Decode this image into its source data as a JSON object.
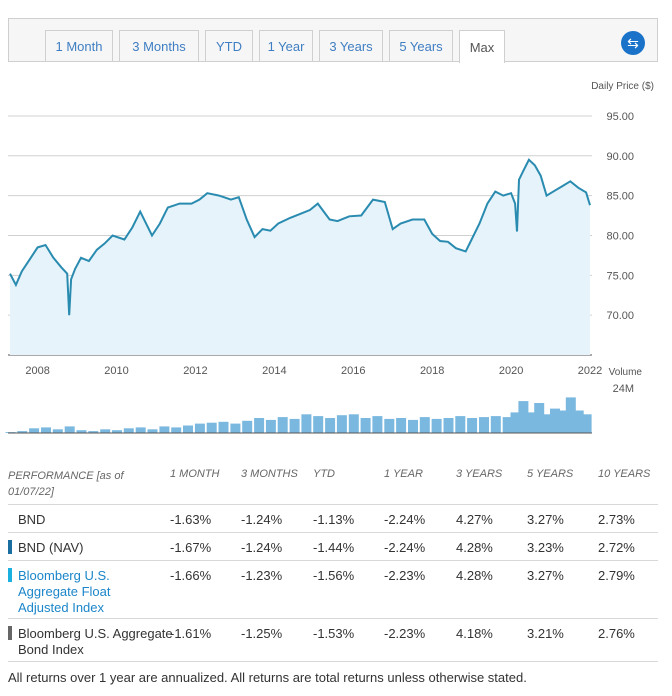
{
  "tabs": [
    {
      "label": "1 Month",
      "active": false
    },
    {
      "label": "3 Months",
      "active": false
    },
    {
      "label": "YTD",
      "active": false
    },
    {
      "label": "1 Year",
      "active": false
    },
    {
      "label": "3 Years",
      "active": false
    },
    {
      "label": "5 Years",
      "active": false
    },
    {
      "label": "Max",
      "active": true
    }
  ],
  "swap_icon": "swap-arrows-icon",
  "colors": {
    "line": "#2a8bb0",
    "fill": "#e6f3fa",
    "volume": "#7ab8df",
    "accent": "#1a73c8",
    "nav_marker": "#1a6ea0",
    "float_marker": "#1ab0e0",
    "bond_marker": "#666666",
    "float_text": "#1b86c9"
  },
  "chart_data": [
    {
      "type": "line",
      "ylabel": "Daily Price ($)",
      "ylim": [
        65,
        97
      ],
      "yticks": [
        "95.00",
        "90.00",
        "85.00",
        "80.00",
        "75.00",
        "70.00"
      ],
      "ytick_values": [
        95,
        90,
        85,
        80,
        75,
        70
      ],
      "xlim": [
        2007.25,
        2022.05
      ],
      "xticks": [
        "2008",
        "2010",
        "2012",
        "2014",
        "2016",
        "2018",
        "2020",
        "2022"
      ],
      "xtick_values": [
        2008,
        2010,
        2012,
        2014,
        2016,
        2018,
        2020,
        2022
      ],
      "grid": true,
      "x": [
        2007.3,
        2007.45,
        2007.6,
        2007.8,
        2008.0,
        2008.2,
        2008.4,
        2008.6,
        2008.75,
        2008.8,
        2008.85,
        2008.95,
        2009.1,
        2009.3,
        2009.5,
        2009.7,
        2009.9,
        2010.2,
        2010.4,
        2010.6,
        2010.9,
        2011.1,
        2011.3,
        2011.6,
        2011.9,
        2012.1,
        2012.3,
        2012.6,
        2012.9,
        2013.1,
        2013.3,
        2013.5,
        2013.7,
        2013.9,
        2014.1,
        2014.4,
        2014.7,
        2014.9,
        2015.1,
        2015.4,
        2015.6,
        2015.9,
        2016.2,
        2016.5,
        2016.8,
        2017.0,
        2017.2,
        2017.5,
        2017.8,
        2018.0,
        2018.2,
        2018.4,
        2018.6,
        2018.85,
        2019.0,
        2019.2,
        2019.4,
        2019.6,
        2019.8,
        2020.0,
        2020.1,
        2020.15,
        2020.2,
        2020.3,
        2020.45,
        2020.6,
        2020.75,
        2020.9,
        2021.1,
        2021.3,
        2021.5,
        2021.7,
        2021.9,
        2022.0
      ],
      "values": [
        75.2,
        73.8,
        75.5,
        77.0,
        78.5,
        78.8,
        77.2,
        76.0,
        75.2,
        70.0,
        74.5,
        75.8,
        77.2,
        76.8,
        78.2,
        79.0,
        80.0,
        79.5,
        81.0,
        83.0,
        80.0,
        81.5,
        83.5,
        84.0,
        84.0,
        84.5,
        85.3,
        85.0,
        84.5,
        84.8,
        82.0,
        79.8,
        80.8,
        80.6,
        81.5,
        82.2,
        82.8,
        83.2,
        84.0,
        82.0,
        81.8,
        82.4,
        82.5,
        84.5,
        84.2,
        80.8,
        81.5,
        82.0,
        82.0,
        80.2,
        79.3,
        79.2,
        78.4,
        78.0,
        79.5,
        81.5,
        84.0,
        85.5,
        85.0,
        85.3,
        84.0,
        80.5,
        87.0,
        88.0,
        89.5,
        88.8,
        87.5,
        85.0,
        85.6,
        86.2,
        86.8,
        86.0,
        85.4,
        83.8
      ]
    },
    {
      "type": "bar",
      "ylabel": "Volume",
      "yticks": [
        "24M"
      ],
      "ytick_values": [
        24
      ],
      "ylim": [
        0,
        24
      ],
      "xlim": [
        2007.25,
        2022.05
      ],
      "x": [
        2007.3,
        2007.6,
        2007.9,
        2008.2,
        2008.5,
        2008.8,
        2009.1,
        2009.4,
        2009.7,
        2010.0,
        2010.3,
        2010.6,
        2010.9,
        2011.2,
        2011.5,
        2011.8,
        2012.1,
        2012.4,
        2012.7,
        2013.0,
        2013.3,
        2013.6,
        2013.9,
        2014.2,
        2014.5,
        2014.8,
        2015.1,
        2015.4,
        2015.7,
        2016.0,
        2016.3,
        2016.6,
        2016.9,
        2017.2,
        2017.5,
        2017.8,
        2018.1,
        2018.4,
        2018.7,
        2019.0,
        2019.3,
        2019.6,
        2019.9,
        2020.1,
        2020.3,
        2020.5,
        2020.7,
        2020.9,
        2021.1,
        2021.3,
        2021.5,
        2021.7,
        2021.9
      ],
      "values": [
        0.5,
        1.0,
        2.5,
        3.0,
        2.0,
        3.5,
        1.5,
        1.0,
        2.0,
        1.5,
        2.5,
        3.0,
        2.0,
        3.5,
        3.0,
        4.0,
        5.0,
        5.5,
        6.0,
        5.0,
        6.5,
        8.0,
        7.0,
        8.5,
        7.5,
        10.0,
        9.0,
        8.0,
        9.5,
        10.0,
        8.0,
        9.0,
        7.5,
        8.0,
        7.0,
        8.5,
        7.5,
        8.0,
        9.0,
        8.0,
        8.5,
        9.0,
        8.5,
        11.0,
        17.0,
        11.0,
        16.0,
        10.0,
        13.0,
        12.0,
        19.0,
        12.0,
        10.0
      ]
    }
  ],
  "performance": {
    "as_of_label": "PERFORMANCE [as of 01/07/22]",
    "columns": [
      "1 MONTH",
      "3 MONTHS",
      "YTD",
      "1 YEAR",
      "3 YEARS",
      "5 YEARS",
      "10 YEARS"
    ],
    "rows": [
      {
        "name": "BND",
        "marker": "",
        "values": [
          "-1.63%",
          "-1.24%",
          "-1.13%",
          "-2.24%",
          "4.27%",
          "3.27%",
          "2.73%"
        ]
      },
      {
        "name": "BND (NAV)",
        "marker": "#1a6ea0",
        "values": [
          "-1.67%",
          "-1.24%",
          "-1.44%",
          "-2.24%",
          "4.28%",
          "3.23%",
          "2.72%"
        ]
      },
      {
        "name": "Bloomberg U.S. Aggregate Float Adjusted Index",
        "marker": "#1ab0e0",
        "values": [
          "-1.66%",
          "-1.23%",
          "-1.56%",
          "-2.23%",
          "4.28%",
          "3.27%",
          "2.79%"
        ]
      },
      {
        "name": "Bloomberg U.S. Aggregate Bond Index",
        "marker": "#666666",
        "values": [
          "-1.61%",
          "-1.25%",
          "-1.53%",
          "-2.23%",
          "4.18%",
          "3.21%",
          "2.76%"
        ]
      }
    ]
  },
  "footnote": "All returns over 1 year are annualized. All returns are total returns unless otherwise stated."
}
